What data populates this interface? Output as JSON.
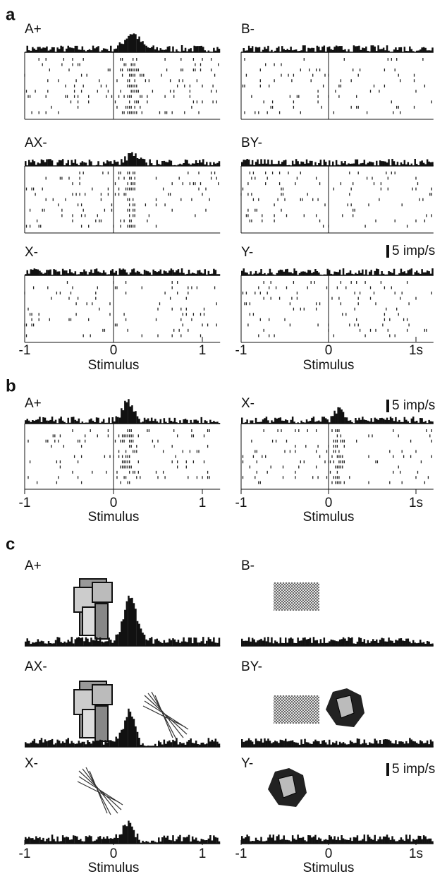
{
  "figure": {
    "panels": [
      {
        "label": "a",
        "titles": [
          "A+",
          "B-",
          "AX-",
          "BY-",
          "X-",
          "Y-"
        ],
        "scale_label": "5 imp/s",
        "xlim": [
          -1,
          1.2
        ],
        "xticks_left": [
          -1,
          0,
          1
        ],
        "xticks_right": [
          -1,
          0,
          {
            "value": 1,
            "label": "1s"
          }
        ],
        "xlabel": "Stimulus"
      },
      {
        "label": "b",
        "titles": [
          "A+",
          "X-"
        ],
        "scale_label": "5 imp/s",
        "xlim": [
          -1,
          1.2
        ],
        "xticks_left": [
          -1,
          0,
          1
        ],
        "xticks_right": [
          -1,
          0,
          {
            "value": 1,
            "label": "1s"
          }
        ],
        "xlabel": "Stimulus"
      },
      {
        "label": "c",
        "titles": [
          "A+",
          "B-",
          "AX-",
          "BY-",
          "X-",
          "Y-"
        ],
        "scale_label": "5 imp/s",
        "xlim": [
          -1,
          1.2
        ],
        "xticks_left": [
          -1,
          0,
          1
        ],
        "xticks_right": [
          -1,
          0,
          {
            "value": 1,
            "label": "1s"
          }
        ],
        "xlabel": "Stimulus"
      }
    ]
  }
}
